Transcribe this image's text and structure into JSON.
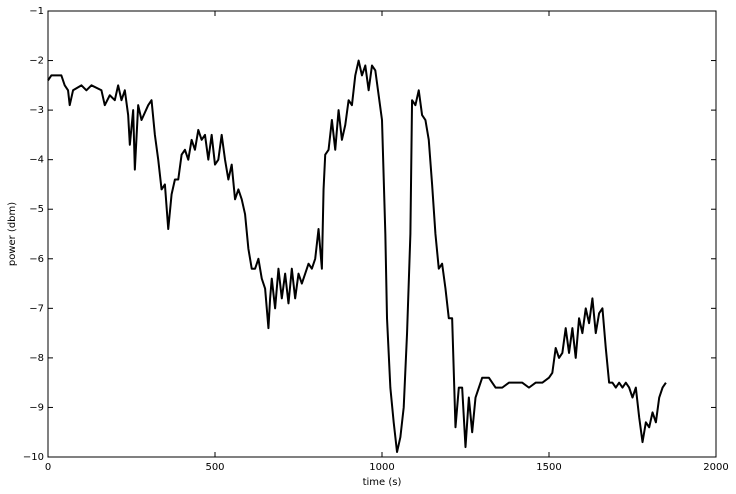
{
  "chart_data": {
    "type": "line",
    "x_label": "time (s)",
    "y_label": "power (dbm)",
    "x": [
      0,
      10,
      40,
      50,
      60,
      65,
      75,
      100,
      115,
      130,
      160,
      170,
      185,
      200,
      210,
      220,
      230,
      240,
      245,
      255,
      260,
      270,
      280,
      300,
      310,
      320,
      330,
      340,
      350,
      360,
      370,
      380,
      390,
      400,
      410,
      420,
      430,
      440,
      450,
      460,
      470,
      480,
      490,
      500,
      510,
      520,
      530,
      540,
      550,
      560,
      570,
      580,
      590,
      600,
      610,
      620,
      630,
      640,
      650,
      660,
      665,
      670,
      680,
      690,
      700,
      710,
      720,
      730,
      740,
      750,
      760,
      770,
      780,
      790,
      800,
      810,
      820,
      825,
      830,
      840,
      850,
      860,
      870,
      880,
      890,
      900,
      910,
      920,
      930,
      940,
      950,
      960,
      970,
      980,
      990,
      1000,
      1010,
      1015,
      1025,
      1035,
      1045,
      1055,
      1065,
      1075,
      1085,
      1090,
      1100,
      1110,
      1120,
      1130,
      1140,
      1150,
      1160,
      1170,
      1180,
      1190,
      1200,
      1210,
      1220,
      1230,
      1240,
      1250,
      1260,
      1270,
      1280,
      1290,
      1300,
      1320,
      1340,
      1360,
      1380,
      1400,
      1420,
      1440,
      1460,
      1480,
      1500,
      1510,
      1520,
      1530,
      1540,
      1550,
      1560,
      1570,
      1580,
      1590,
      1600,
      1610,
      1620,
      1630,
      1640,
      1650,
      1660,
      1670,
      1680,
      1690,
      1700,
      1710,
      1720,
      1730,
      1740,
      1750,
      1760,
      1770,
      1780,
      1790,
      1800,
      1810,
      1820,
      1830,
      1840,
      1850
    ],
    "series": [
      {
        "color": "#000000",
        "values": [
          -2.4,
          -2.3,
          -2.3,
          -2.5,
          -2.6,
          -2.9,
          -2.6,
          -2.5,
          -2.6,
          -2.5,
          -2.6,
          -2.9,
          -2.7,
          -2.8,
          -2.5,
          -2.8,
          -2.6,
          -3.1,
          -3.7,
          -3.0,
          -4.2,
          -2.9,
          -3.2,
          -2.9,
          -2.8,
          -3.5,
          -4.0,
          -4.6,
          -4.5,
          -5.4,
          -4.7,
          -4.4,
          -4.4,
          -3.9,
          -3.8,
          -4.0,
          -3.6,
          -3.8,
          -3.4,
          -3.6,
          -3.5,
          -4.0,
          -3.5,
          -4.1,
          -4.0,
          -3.5,
          -4.0,
          -4.4,
          -4.1,
          -4.8,
          -4.6,
          -4.8,
          -5.1,
          -5.8,
          -6.2,
          -6.2,
          -6.0,
          -6.4,
          -6.6,
          -7.4,
          -6.8,
          -6.4,
          -7.0,
          -6.2,
          -6.8,
          -6.3,
          -6.9,
          -6.2,
          -6.8,
          -6.3,
          -6.5,
          -6.3,
          -6.1,
          -6.2,
          -6.0,
          -5.4,
          -6.2,
          -4.6,
          -3.9,
          -3.8,
          -3.2,
          -3.8,
          -3.0,
          -3.6,
          -3.3,
          -2.8,
          -2.9,
          -2.3,
          -2.0,
          -2.3,
          -2.1,
          -2.6,
          -2.1,
          -2.2,
          -2.7,
          -3.2,
          -5.5,
          -7.2,
          -8.6,
          -9.3,
          -9.9,
          -9.6,
          -9.0,
          -7.5,
          -5.5,
          -2.8,
          -2.9,
          -2.6,
          -3.1,
          -3.2,
          -3.6,
          -4.5,
          -5.5,
          -6.2,
          -6.1,
          -6.6,
          -7.2,
          -7.2,
          -9.4,
          -8.6,
          -8.6,
          -9.8,
          -8.8,
          -9.5,
          -8.8,
          -8.6,
          -8.4,
          -8.4,
          -8.6,
          -8.6,
          -8.5,
          -8.5,
          -8.5,
          -8.6,
          -8.5,
          -8.5,
          -8.4,
          -8.3,
          -7.8,
          -8.0,
          -7.9,
          -7.4,
          -7.9,
          -7.4,
          -8.0,
          -7.2,
          -7.5,
          -7.0,
          -7.3,
          -6.8,
          -7.5,
          -7.1,
          -7.0,
          -7.8,
          -8.5,
          -8.5,
          -8.6,
          -8.5,
          -8.6,
          -8.5,
          -8.6,
          -8.8,
          -8.6,
          -9.2,
          -9.7,
          -9.3,
          -9.4,
          -9.1,
          -9.3,
          -8.8,
          -8.6,
          -8.5
        ]
      }
    ],
    "xlim": [
      0,
      2000
    ],
    "xticks": [
      0,
      500,
      1000,
      1500,
      2000
    ],
    "ylim": [
      -10,
      -1
    ],
    "yticks": [
      {
        "value": -10,
        "label": "−10"
      },
      {
        "value": -9,
        "label": "−9"
      },
      {
        "value": -8,
        "label": "−8"
      },
      {
        "value": -7,
        "label": "−7"
      },
      {
        "value": -6,
        "label": "−6"
      },
      {
        "value": -5,
        "label": "−5"
      },
      {
        "value": -4,
        "label": "−4"
      },
      {
        "value": -3,
        "label": "−3"
      },
      {
        "value": -2,
        "label": "−2"
      },
      {
        "value": -1,
        "label": "−1"
      }
    ],
    "grid": false
  }
}
